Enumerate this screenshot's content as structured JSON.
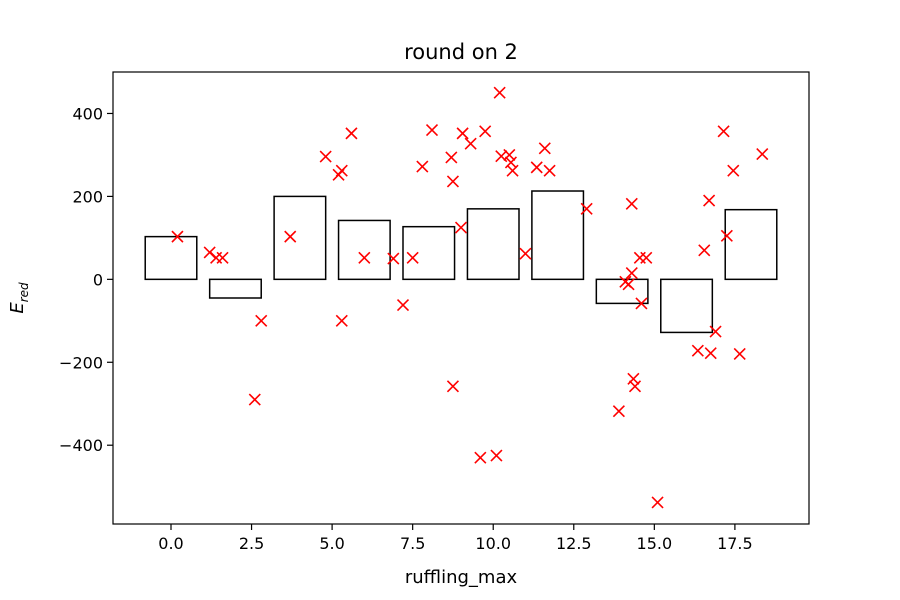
{
  "chart_data": {
    "type": "bar",
    "title": "round on 2",
    "xlabel": "ruffling_max",
    "ylabel": {
      "main": "E",
      "sub": "red"
    },
    "xlim": [
      -1.8,
      19.8
    ],
    "ylim": [
      -590,
      500
    ],
    "xticks": [
      0.0,
      2.5,
      5.0,
      7.5,
      10.0,
      12.5,
      15.0,
      17.5
    ],
    "xtick_labels": [
      "0.0",
      "2.5",
      "5.0",
      "7.5",
      "10.0",
      "12.5",
      "15.0",
      "17.5"
    ],
    "yticks": [
      -400,
      -200,
      0,
      200,
      400
    ],
    "ytick_labels": [
      "−400",
      "−200",
      "0",
      "200",
      "400"
    ],
    "bars": {
      "width": 1.6,
      "edge_color": "#000000",
      "fill": "none",
      "centers": [
        0.0,
        2.0,
        4.0,
        6.0,
        8.0,
        10.0,
        12.0,
        14.0,
        16.0,
        18.0
      ],
      "values": [
        103,
        -45,
        200,
        142,
        127,
        170,
        213,
        -58,
        -128,
        168
      ]
    },
    "scatter": {
      "marker": "x",
      "color": "#ff0000",
      "points": [
        [
          0.2,
          103
        ],
        [
          1.2,
          65
        ],
        [
          1.4,
          52
        ],
        [
          1.6,
          52
        ],
        [
          2.6,
          -290
        ],
        [
          2.8,
          -100
        ],
        [
          3.7,
          103
        ],
        [
          4.8,
          296
        ],
        [
          5.2,
          252
        ],
        [
          5.3,
          262
        ],
        [
          5.3,
          -100
        ],
        [
          5.6,
          352
        ],
        [
          6.0,
          52
        ],
        [
          6.9,
          50
        ],
        [
          7.2,
          -62
        ],
        [
          7.5,
          52
        ],
        [
          7.8,
          272
        ],
        [
          8.1,
          360
        ],
        [
          8.7,
          294
        ],
        [
          8.75,
          236
        ],
        [
          8.75,
          -258
        ],
        [
          9.0,
          125
        ],
        [
          9.05,
          352
        ],
        [
          9.3,
          327
        ],
        [
          9.6,
          -430
        ],
        [
          9.75,
          357
        ],
        [
          10.1,
          -425
        ],
        [
          10.2,
          450
        ],
        [
          10.25,
          297
        ],
        [
          10.5,
          300
        ],
        [
          10.55,
          282
        ],
        [
          10.6,
          262
        ],
        [
          11.0,
          62
        ],
        [
          11.35,
          270
        ],
        [
          11.6,
          316
        ],
        [
          11.75,
          262
        ],
        [
          12.9,
          170
        ],
        [
          13.9,
          -318
        ],
        [
          14.1,
          -6
        ],
        [
          14.2,
          -12
        ],
        [
          14.3,
          182
        ],
        [
          14.3,
          15
        ],
        [
          14.35,
          -240
        ],
        [
          14.4,
          -258
        ],
        [
          14.55,
          52
        ],
        [
          14.6,
          -58
        ],
        [
          14.75,
          52
        ],
        [
          15.1,
          -538
        ],
        [
          16.35,
          -172
        ],
        [
          16.55,
          70
        ],
        [
          16.7,
          190
        ],
        [
          16.75,
          -178
        ],
        [
          16.9,
          -126
        ],
        [
          17.15,
          357
        ],
        [
          17.25,
          105
        ],
        [
          17.45,
          262
        ],
        [
          17.65,
          -180
        ],
        [
          18.35,
          302
        ]
      ]
    }
  }
}
